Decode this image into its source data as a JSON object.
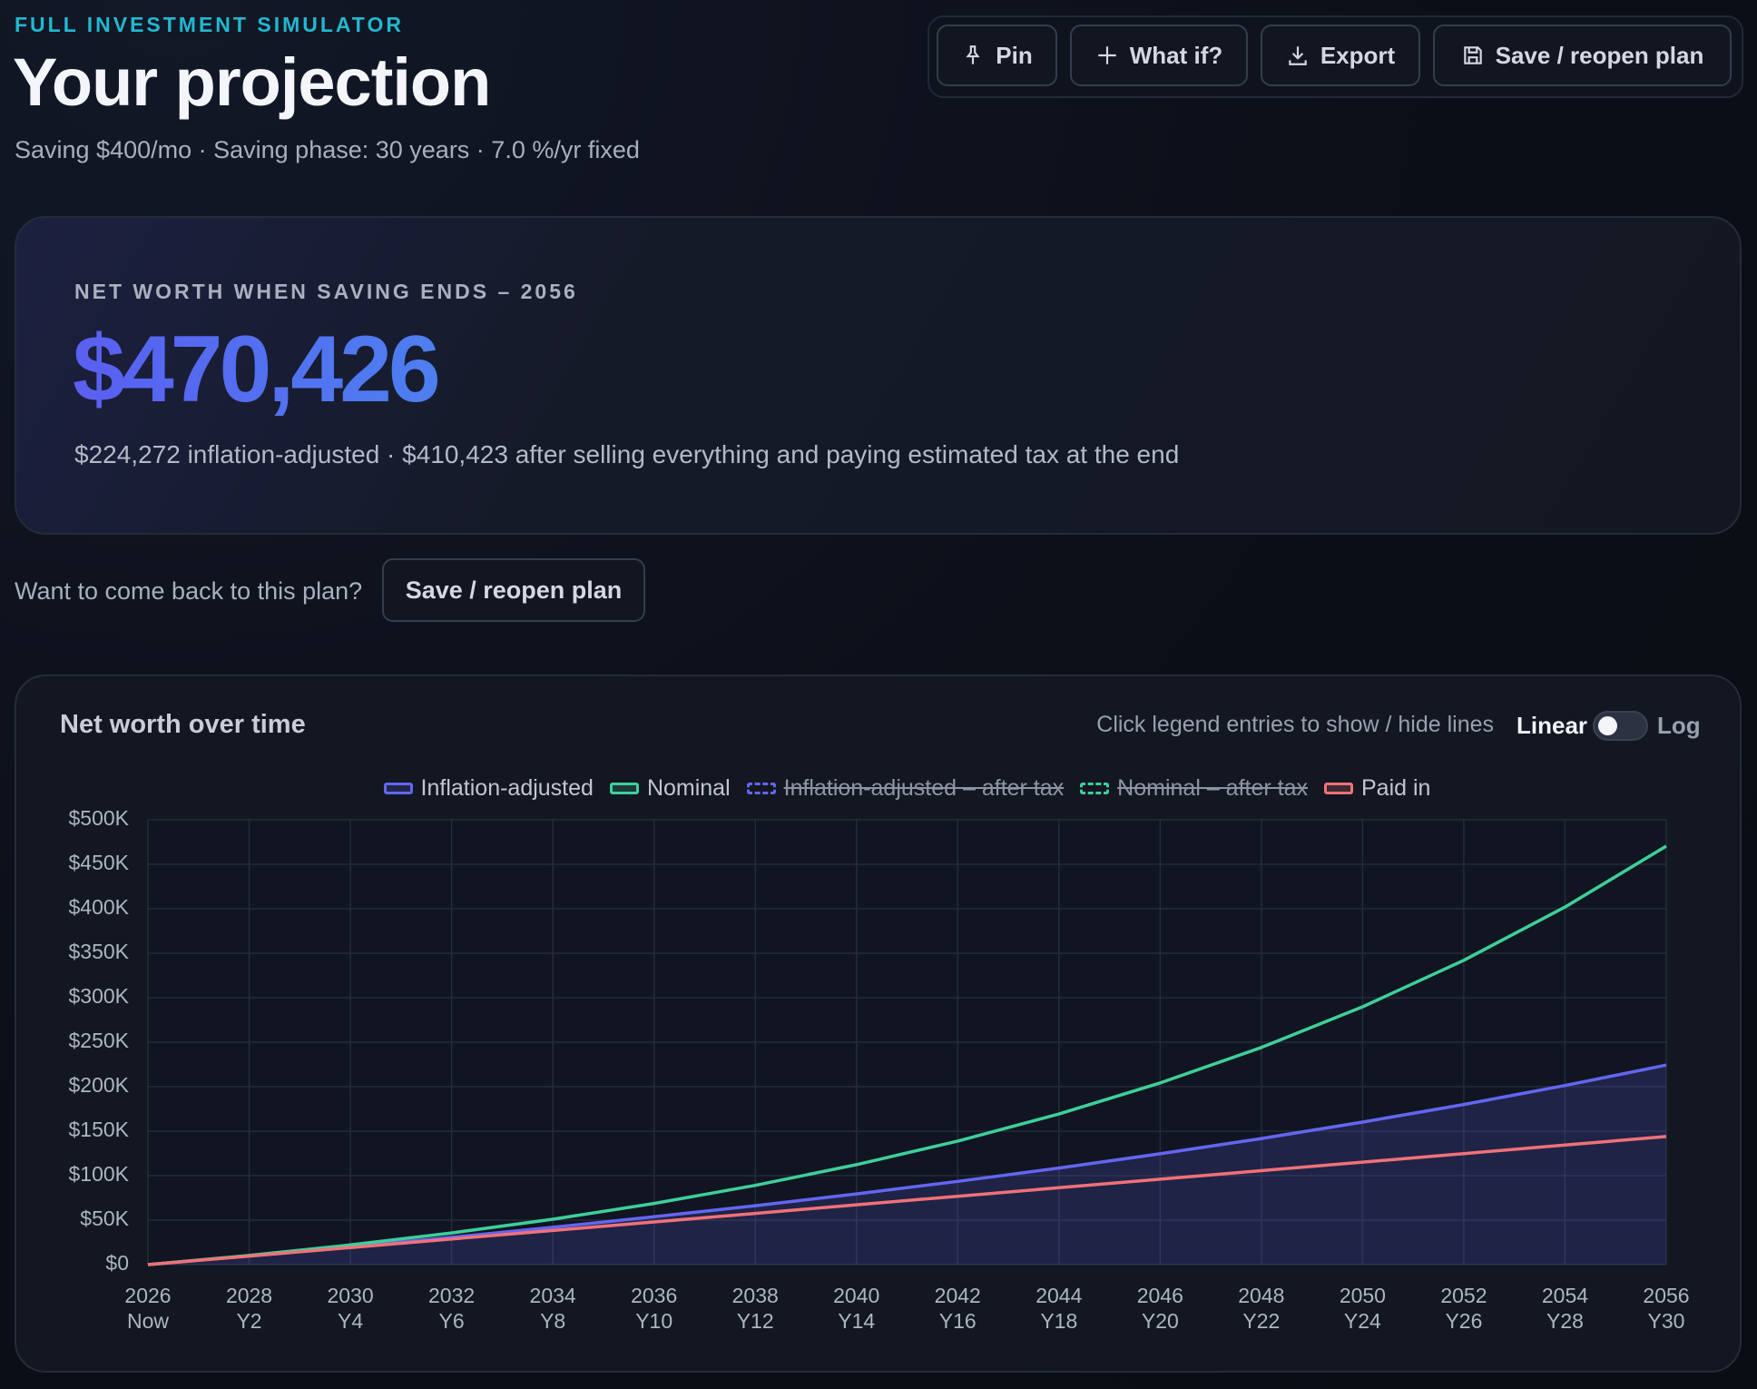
{
  "header": {
    "eyebrow": "FULL INVESTMENT SIMULATOR",
    "title": "Your projection",
    "subtitle": "Saving $400/mo · Saving phase: 30 years · 7.0 %/yr fixed"
  },
  "toolbar": [
    "Pin",
    "What if?",
    "Export",
    "Save / reopen plan"
  ],
  "summary": {
    "label": "NET WORTH WHEN SAVING ENDS – 2056",
    "value": "$470,426",
    "detail": "$224,272 inflation-adjusted · $410,423 after selling everything and paying estimated tax at the end"
  },
  "save_prompt": {
    "text": "Want to come back to this plan?",
    "button": "Save / reopen plan"
  },
  "chart_data": {
    "type": "line",
    "title": "Net worth over time",
    "hint": "Click legend entries to show / hide lines",
    "scale_toggle": {
      "left": "Linear",
      "right": "Log"
    },
    "log_scale": false,
    "grid": true,
    "categories": [
      "2026",
      "2028",
      "2030",
      "2032",
      "2034",
      "2036",
      "2038",
      "2040",
      "2042",
      "2044",
      "2046",
      "2048",
      "2050",
      "2052",
      "2054",
      "2056"
    ],
    "category_sublabels": [
      "Now",
      "Y2",
      "Y4",
      "Y6",
      "Y8",
      "Y10",
      "Y12",
      "Y14",
      "Y16",
      "Y18",
      "Y20",
      "Y22",
      "Y24",
      "Y26",
      "Y28",
      "Y30"
    ],
    "ylim": [
      0,
      500000
    ],
    "yticks": [
      {
        "value": 0,
        "label": "$0"
      },
      {
        "value": 50000,
        "label": "$50K"
      },
      {
        "value": 100000,
        "label": "$100K"
      },
      {
        "value": 150000,
        "label": "$150K"
      },
      {
        "value": 200000,
        "label": "$200K"
      },
      {
        "value": 250000,
        "label": "$250K"
      },
      {
        "value": 300000,
        "label": "$300K"
      },
      {
        "value": 350000,
        "label": "$350K"
      },
      {
        "value": 400000,
        "label": "$400K"
      },
      {
        "value": 450000,
        "label": "$450K"
      },
      {
        "value": 500000,
        "label": "$500K"
      }
    ],
    "series": [
      {
        "name": "Inflation-adjusted",
        "color": "#6366f1",
        "fill": true,
        "visible": true,
        "values": [
          0,
          9813,
          20037,
          30719,
          41916,
          53755,
          66239,
          79480,
          93561,
          108559,
          124598,
          141762,
          160196,
          179990,
          201298,
          224272
        ]
      },
      {
        "name": "Nominal",
        "color": "#3ecf9a",
        "visible": true,
        "values": [
          0,
          10309,
          22117,
          35625,
          51071,
          68812,
          89085,
          112305,
          138891,
          169319,
          204166,
          244058,
          289746,
          342035,
          401891,
          470426
        ]
      },
      {
        "name": "Inflation-adjusted – after tax",
        "color": "#6366f1",
        "visible": false
      },
      {
        "name": "Nominal – after tax",
        "color": "#3ecf9a",
        "visible": false
      },
      {
        "name": "Paid in",
        "color": "#f07178",
        "visible": true,
        "values": [
          0,
          9600,
          19200,
          28800,
          38400,
          48000,
          57600,
          67200,
          76800,
          86400,
          96000,
          105600,
          115200,
          124800,
          134400,
          144000
        ]
      }
    ]
  }
}
